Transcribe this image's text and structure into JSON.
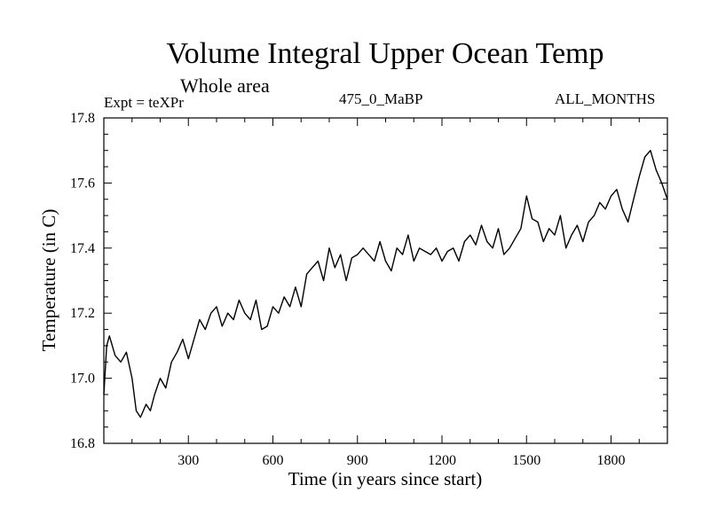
{
  "chart_data": {
    "type": "line",
    "title": "Volume Integral Upper Ocean Temp",
    "subtitle": "Whole area",
    "annotations": {
      "experiment": "Expt = teXPr",
      "run": "475_0_MaBP",
      "months": "ALL_MONTHS"
    },
    "xlabel": "Time (in years since start)",
    "ylabel": "Temperature (in C)",
    "xlim": [
      0,
      2000
    ],
    "ylim": [
      16.8,
      17.8
    ],
    "x_ticks": [
      300,
      600,
      900,
      1200,
      1500,
      1800
    ],
    "y_ticks": [
      "16.8",
      "17.0",
      "17.2",
      "17.4",
      "17.6",
      "17.8"
    ],
    "grid": false,
    "legend": "none",
    "series": [
      {
        "color": "#000000",
        "x": [
          0,
          10,
          20,
          40,
          60,
          80,
          100,
          115,
          130,
          150,
          165,
          180,
          200,
          220,
          240,
          260,
          280,
          300,
          320,
          340,
          360,
          380,
          400,
          420,
          440,
          460,
          480,
          500,
          520,
          540,
          560,
          580,
          600,
          620,
          640,
          660,
          680,
          700,
          720,
          740,
          760,
          780,
          800,
          820,
          840,
          860,
          880,
          900,
          920,
          940,
          960,
          980,
          1000,
          1020,
          1040,
          1060,
          1080,
          1100,
          1120,
          1140,
          1160,
          1180,
          1200,
          1220,
          1240,
          1260,
          1280,
          1300,
          1320,
          1340,
          1360,
          1380,
          1400,
          1420,
          1440,
          1460,
          1480,
          1500,
          1520,
          1540,
          1560,
          1580,
          1600,
          1620,
          1640,
          1660,
          1680,
          1700,
          1720,
          1740,
          1760,
          1780,
          1800,
          1820,
          1840,
          1860,
          1880,
          1900,
          1920,
          1940,
          1960,
          1980,
          2000
        ],
        "values": [
          16.95,
          17.1,
          17.13,
          17.07,
          17.05,
          17.08,
          17.0,
          16.9,
          16.88,
          16.92,
          16.9,
          16.95,
          17.0,
          16.97,
          17.05,
          17.08,
          17.12,
          17.06,
          17.12,
          17.18,
          17.15,
          17.2,
          17.22,
          17.16,
          17.2,
          17.18,
          17.24,
          17.2,
          17.18,
          17.24,
          17.15,
          17.16,
          17.22,
          17.2,
          17.25,
          17.22,
          17.28,
          17.22,
          17.32,
          17.34,
          17.36,
          17.3,
          17.4,
          17.34,
          17.38,
          17.3,
          17.37,
          17.38,
          17.4,
          17.38,
          17.36,
          17.42,
          17.36,
          17.33,
          17.4,
          17.38,
          17.44,
          17.36,
          17.4,
          17.39,
          17.38,
          17.4,
          17.36,
          17.39,
          17.4,
          17.36,
          17.42,
          17.44,
          17.41,
          17.47,
          17.42,
          17.4,
          17.46,
          17.38,
          17.4,
          17.43,
          17.46,
          17.56,
          17.49,
          17.48,
          17.42,
          17.46,
          17.44,
          17.5,
          17.4,
          17.44,
          17.47,
          17.42,
          17.48,
          17.5,
          17.54,
          17.52,
          17.56,
          17.58,
          17.52,
          17.48,
          17.55,
          17.62,
          17.68,
          17.7,
          17.64,
          17.6,
          17.55
        ]
      }
    ]
  }
}
